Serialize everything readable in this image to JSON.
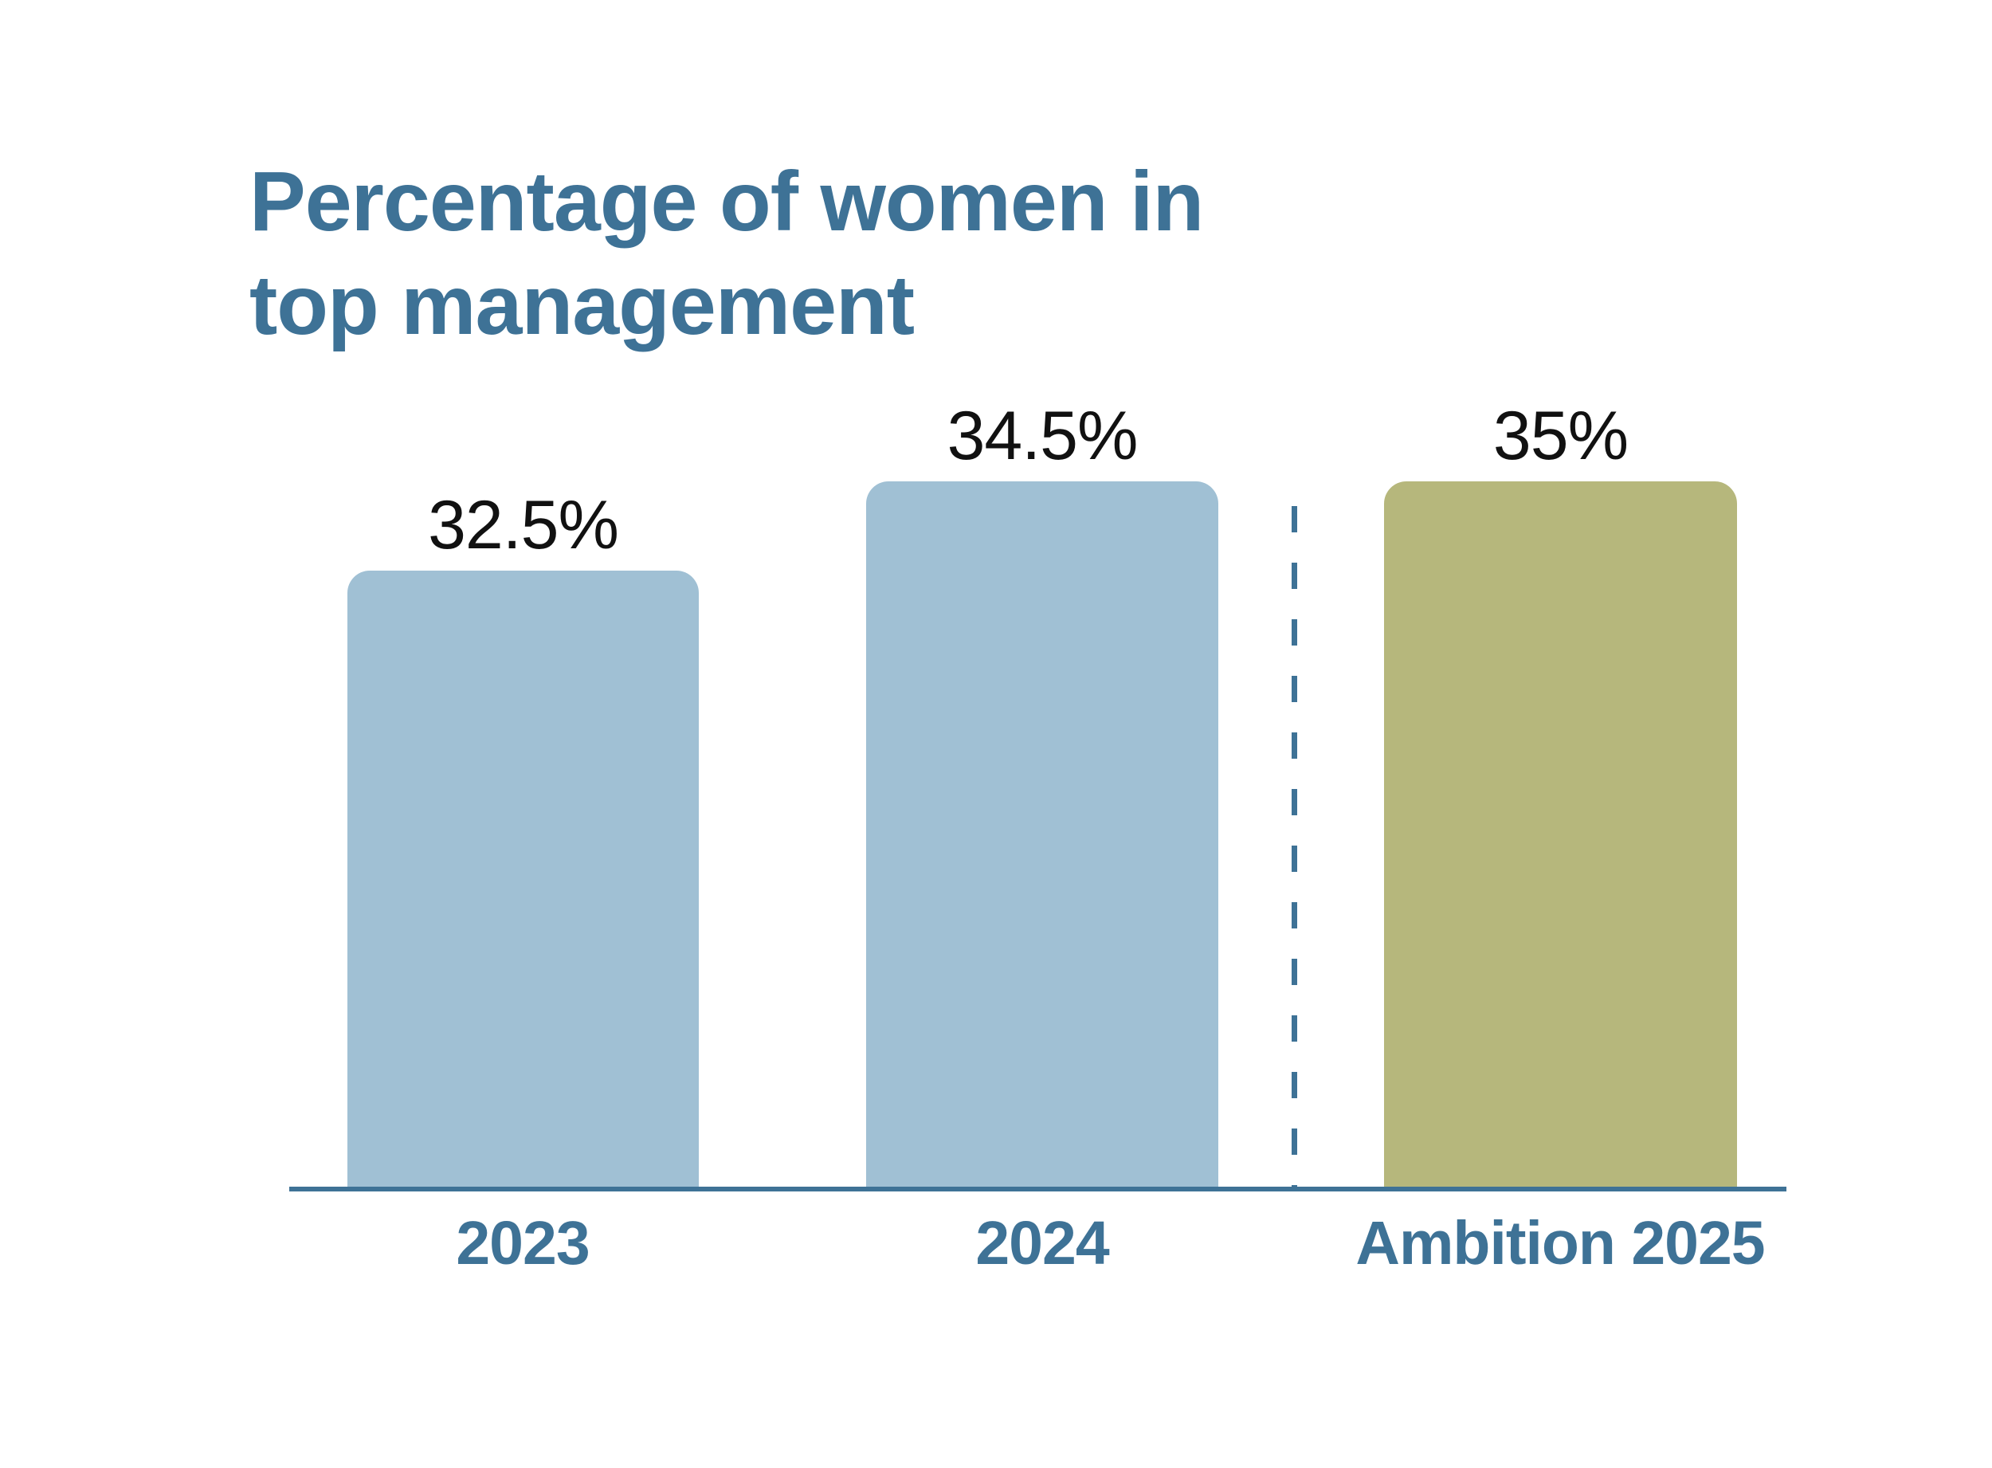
{
  "chart_data": {
    "type": "bar",
    "title": "Percentage of women in top management",
    "title_lines": [
      "Percentage of women in",
      "top management"
    ],
    "categories": [
      "2023",
      "2024",
      "Ambition 2025"
    ],
    "values": [
      32.5,
      34.5,
      35
    ],
    "data_labels": [
      "32.5%",
      "34.5%",
      "35%"
    ],
    "unit": "%",
    "legend": "none",
    "grid": "off",
    "yaxis": "hidden",
    "annotations": [
      "vertical dashed separator between 2024 actual and Ambition 2025 target"
    ],
    "colors": {
      "bar_blue": "#A0C0D4",
      "bar_olive": "#B6B77C",
      "accent_text": "#3E7296",
      "value_label": "#111111"
    }
  }
}
